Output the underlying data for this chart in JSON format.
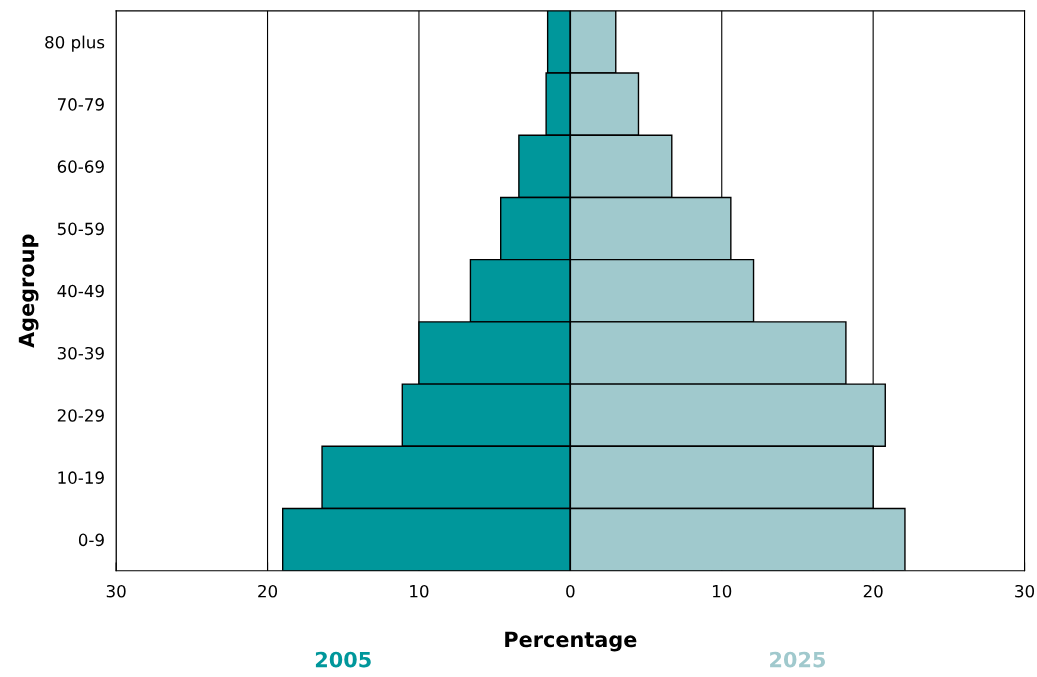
{
  "chart_data": {
    "type": "bar",
    "orientation": "horizontal",
    "xlabel": "Percentage",
    "ylabel": "Agegroup",
    "categories": [
      "80 plus",
      "70-79",
      "60-69",
      "50-59",
      "40-49",
      "30-39",
      "20-29",
      "10-19",
      "0-9"
    ],
    "series": [
      {
        "name": "2005",
        "color": "#00979b",
        "values": [
          -1.5,
          -1.6,
          -3.4,
          -4.6,
          -6.6,
          -10,
          -11.1,
          -16.4,
          -19
        ]
      },
      {
        "name": "2025",
        "color": "#a0c9cd",
        "values": [
          3.0,
          4.5,
          6.7,
          10.6,
          12.1,
          18.2,
          20.8,
          20.0,
          22.1
        ]
      }
    ],
    "xlim": [
      -30,
      30
    ],
    "xticks": [
      {
        "value": -30,
        "label": "30"
      },
      {
        "value": -20,
        "label": "20"
      },
      {
        "value": -10,
        "label": "10"
      },
      0,
      10,
      20,
      30
    ],
    "grid": "x",
    "stacked": true
  }
}
